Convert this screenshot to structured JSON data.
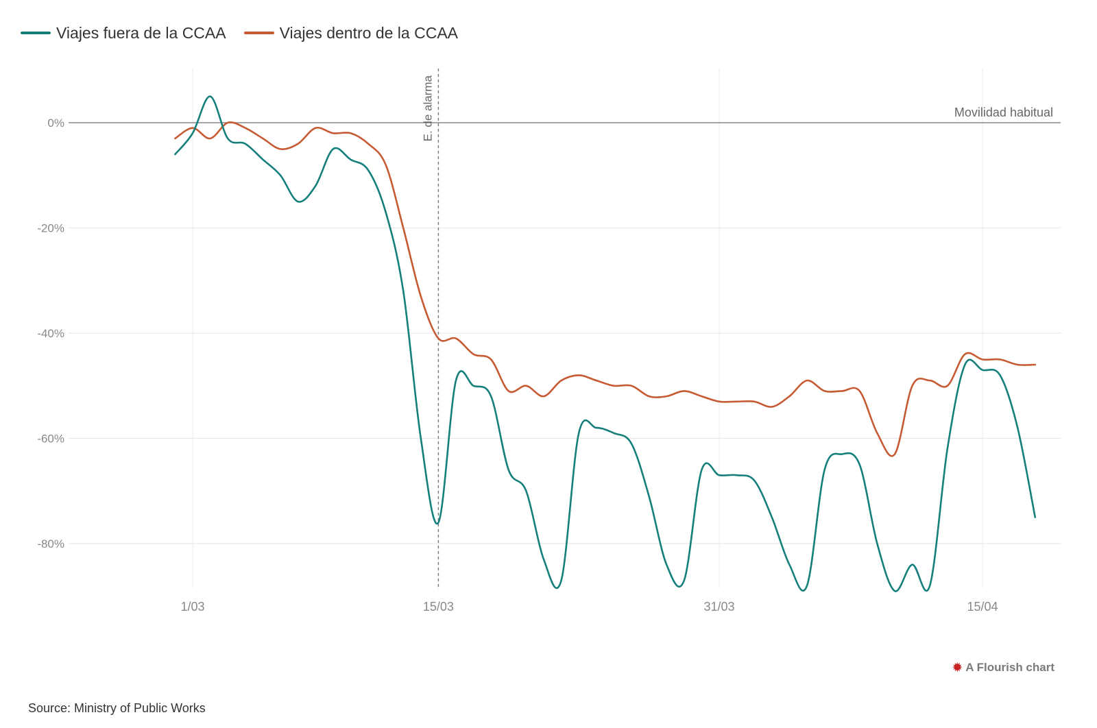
{
  "chart_data": {
    "type": "line",
    "x_ticks": [
      "1/03",
      "15/03",
      "31/03",
      "15/04"
    ],
    "y_ticks": [
      "0%",
      "-20%",
      "-40%",
      "-60%",
      "-80%"
    ],
    "y_tick_values": [
      0,
      -20,
      -40,
      -60,
      -80
    ],
    "ylim": [
      -90,
      10
    ],
    "grid": true,
    "legend_position": "top-left",
    "baseline": {
      "value": 0,
      "label": "Movilidad habitual"
    },
    "event": {
      "date": "15/03",
      "label": "E. de alarma"
    },
    "series": [
      {
        "name": "Viajes fuera de la CCAA",
        "color": "#157f7b",
        "points": [
          [
            -1,
            -6
          ],
          [
            0,
            -2
          ],
          [
            1,
            5
          ],
          [
            2,
            -3
          ],
          [
            3,
            -4
          ],
          [
            4,
            -7
          ],
          [
            5,
            -10
          ],
          [
            6,
            -15
          ],
          [
            7,
            -12
          ],
          [
            8,
            -5
          ],
          [
            9,
            -7
          ],
          [
            10,
            -9
          ],
          [
            11,
            -17
          ],
          [
            12,
            -32
          ],
          [
            13,
            -60
          ],
          [
            14,
            -76
          ],
          [
            15,
            -49
          ],
          [
            16,
            -50
          ],
          [
            17,
            -52
          ],
          [
            18,
            -66
          ],
          [
            19,
            -70
          ],
          [
            20,
            -83
          ],
          [
            21,
            -87
          ],
          [
            22,
            -59
          ],
          [
            23,
            -58
          ],
          [
            24,
            -59
          ],
          [
            25,
            -61
          ],
          [
            26,
            -71
          ],
          [
            27,
            -84
          ],
          [
            28,
            -87
          ],
          [
            29,
            -66
          ],
          [
            30,
            -67
          ],
          [
            31,
            -67
          ],
          [
            32,
            -68
          ],
          [
            33,
            -75
          ],
          [
            34,
            -84
          ],
          [
            35,
            -88
          ],
          [
            36,
            -66
          ],
          [
            37,
            -63
          ],
          [
            38,
            -65
          ],
          [
            39,
            -80
          ],
          [
            40,
            -89
          ],
          [
            41,
            -84
          ],
          [
            42,
            -88
          ],
          [
            43,
            -62
          ],
          [
            44,
            -46
          ],
          [
            45,
            -47
          ],
          [
            46,
            -48
          ],
          [
            47,
            -58
          ],
          [
            48,
            -75
          ]
        ]
      },
      {
        "name": "Viajes dentro de la CCAA",
        "color": "#c65a33",
        "points": [
          [
            -1,
            -3
          ],
          [
            0,
            -1
          ],
          [
            1,
            -3
          ],
          [
            2,
            0
          ],
          [
            3,
            -1
          ],
          [
            4,
            -3
          ],
          [
            5,
            -5
          ],
          [
            6,
            -4
          ],
          [
            7,
            -1
          ],
          [
            8,
            -2
          ],
          [
            9,
            -2
          ],
          [
            10,
            -4
          ],
          [
            11,
            -8
          ],
          [
            12,
            -20
          ],
          [
            13,
            -33
          ],
          [
            14,
            -41
          ],
          [
            15,
            -41
          ],
          [
            16,
            -44
          ],
          [
            17,
            -45
          ],
          [
            18,
            -51
          ],
          [
            19,
            -50
          ],
          [
            20,
            -52
          ],
          [
            21,
            -49
          ],
          [
            22,
            -48
          ],
          [
            23,
            -49
          ],
          [
            24,
            -50
          ],
          [
            25,
            -50
          ],
          [
            26,
            -52
          ],
          [
            27,
            -52
          ],
          [
            28,
            -51
          ],
          [
            29,
            -52
          ],
          [
            30,
            -53
          ],
          [
            31,
            -53
          ],
          [
            32,
            -53
          ],
          [
            33,
            -54
          ],
          [
            34,
            -52
          ],
          [
            35,
            -49
          ],
          [
            36,
            -51
          ],
          [
            37,
            -51
          ],
          [
            38,
            -51
          ],
          [
            39,
            -59
          ],
          [
            40,
            -63
          ],
          [
            41,
            -50
          ],
          [
            42,
            -49
          ],
          [
            43,
            -50
          ],
          [
            44,
            -44
          ],
          [
            45,
            -45
          ],
          [
            46,
            -45
          ],
          [
            47,
            -46
          ],
          [
            48,
            -46
          ]
        ]
      }
    ]
  },
  "credit": {
    "text": "A Flourish chart",
    "icon": "flourish-icon"
  },
  "source": "Source: Ministry of Public Works"
}
